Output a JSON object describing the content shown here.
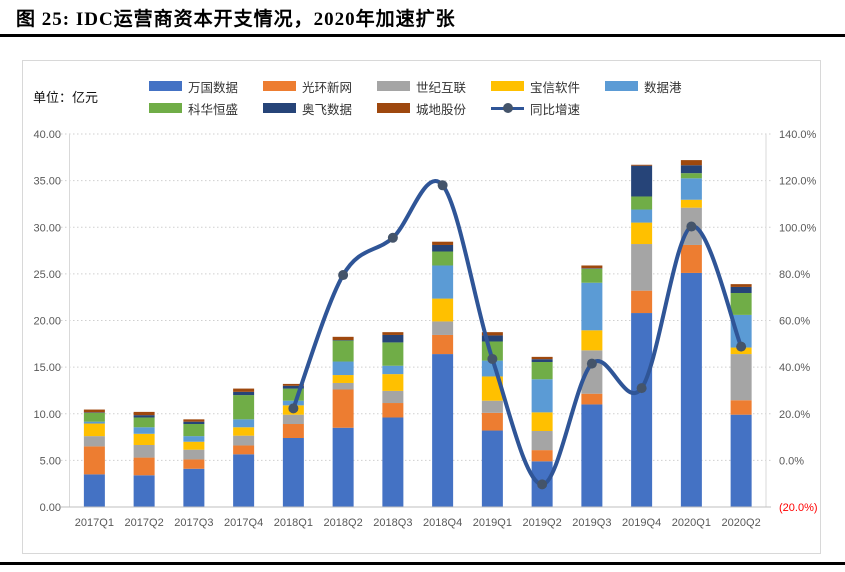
{
  "figure": {
    "title": "图 25:  IDC运营商资本开支情况，2020年加速扩张"
  },
  "chart_data": {
    "type": "bar",
    "subtype": "stacked-column-with-yoy-line",
    "title": "图 25: IDC运营商资本开支情况，2020年加速扩张",
    "unit_label": "单位：亿元",
    "categories": [
      "2017Q1",
      "2017Q2",
      "2017Q3",
      "2017Q4",
      "2018Q1",
      "2018Q2",
      "2018Q3",
      "2018Q4",
      "2019Q1",
      "2019Q2",
      "2019Q3",
      "2019Q4",
      "2020Q1",
      "2020Q2"
    ],
    "series": [
      {
        "name": "万国数据",
        "color": "#4472C4",
        "values": [
          3.5,
          3.4,
          4.1,
          5.65,
          7.4,
          8.5,
          9.6,
          16.4,
          8.2,
          4.9,
          11.0,
          20.8,
          25.1,
          9.9
        ]
      },
      {
        "name": "光环新网",
        "color": "#ED7D31",
        "values": [
          3.0,
          1.9,
          1.0,
          0.95,
          1.5,
          4.1,
          1.55,
          2.05,
          1.9,
          1.2,
          1.15,
          2.4,
          3.0,
          1.55
        ]
      },
      {
        "name": "世纪互联",
        "color": "#A5A5A5",
        "values": [
          1.1,
          1.35,
          1.05,
          1.05,
          1.0,
          0.7,
          1.3,
          1.45,
          1.3,
          2.05,
          4.65,
          5.0,
          4.0,
          4.95
        ]
      },
      {
        "name": "宝信软件",
        "color": "#FFC000",
        "values": [
          1.35,
          1.2,
          0.85,
          0.9,
          1.0,
          0.85,
          1.8,
          2.45,
          2.6,
          2.0,
          2.15,
          2.3,
          0.85,
          0.7
        ]
      },
      {
        "name": "数据港",
        "color": "#5B9BD5",
        "values": [
          0.2,
          0.7,
          0.6,
          0.85,
          0.5,
          1.45,
          0.9,
          3.55,
          1.7,
          3.55,
          5.1,
          1.4,
          2.3,
          3.5
        ]
      },
      {
        "name": "科华恒盛",
        "color": "#70AD47",
        "values": [
          0.95,
          1.05,
          1.3,
          2.6,
          1.3,
          2.25,
          2.5,
          1.5,
          2.05,
          1.85,
          1.5,
          1.4,
          0.55,
          2.35
        ]
      },
      {
        "name": "奥飞数据",
        "color": "#264478",
        "values": [
          0.05,
          0.25,
          0.25,
          0.35,
          0.3,
          0.05,
          0.8,
          0.7,
          0.65,
          0.3,
          0.05,
          3.3,
          0.85,
          0.65
        ]
      },
      {
        "name": "城地股份",
        "color": "#9E480E",
        "values": [
          0.3,
          0.35,
          0.25,
          0.35,
          0.2,
          0.35,
          0.3,
          0.35,
          0.35,
          0.25,
          0.3,
          0.1,
          0.55,
          0.3
        ]
      }
    ],
    "line_series": {
      "name": "同比增速",
      "color": "#2F5597",
      "marker_color": "#44546A",
      "axis": "right",
      "values_pct": [
        null,
        null,
        null,
        null,
        22.3,
        79.5,
        95.5,
        118.0,
        43.5,
        -10.3,
        41.5,
        31.0,
        100.3,
        48.8
      ]
    },
    "left_axis": {
      "min": 0,
      "max": 40,
      "step": 5,
      "tick_labels": [
        "0.00",
        "5.00",
        "10.00",
        "15.00",
        "20.00",
        "25.00",
        "30.00",
        "35.00",
        "40.00"
      ]
    },
    "right_axis": {
      "min": -20,
      "max": 140,
      "step": 20,
      "tick_labels": [
        "(20.0%)",
        "0.0%",
        "20.0%",
        "40.0%",
        "60.0%",
        "80.0%",
        "100.0%",
        "120.0%",
        "140.0%"
      ],
      "negative_tick_color": "#FF0000"
    },
    "legend": {
      "position": "top",
      "rows": [
        [
          "万国数据",
          "光环新网",
          "世纪互联",
          "宝信软件",
          "数据港"
        ],
        [
          "科华恒盛",
          "奥飞数据",
          "城地股份",
          "同比增速"
        ]
      ]
    },
    "grid": {
      "horizontal": "dotted",
      "color": "#CFCFCF"
    },
    "axis_text_color": "#595959"
  }
}
